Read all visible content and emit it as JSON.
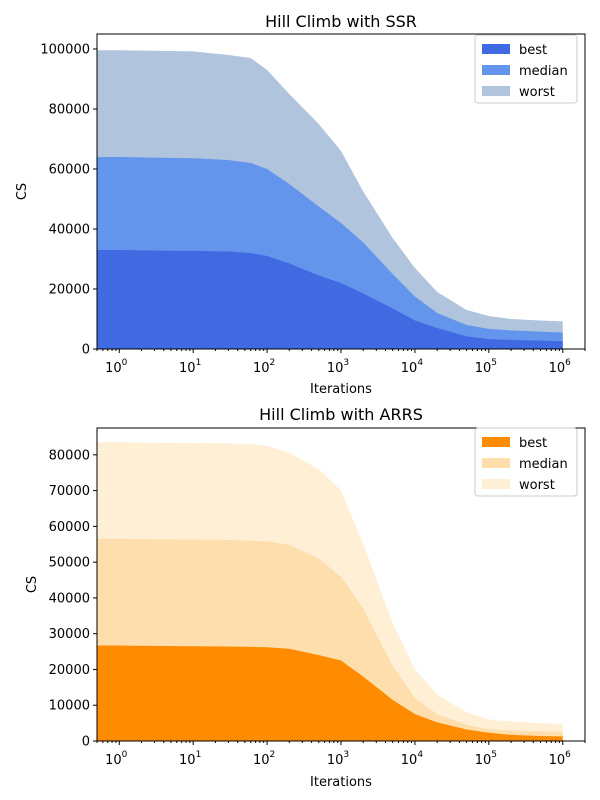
{
  "chart_data": [
    {
      "type": "area",
      "title": "Hill Climb with SSR",
      "xlabel": "Iterations",
      "ylabel": "CS",
      "xscale": "log",
      "xlim": [
        0.5,
        2000000
      ],
      "ylim": [
        0,
        105000
      ],
      "x_ticks": [
        1,
        10,
        100,
        1000,
        10000,
        100000,
        1000000
      ],
      "x_tick_labels": [
        [
          "10",
          "0"
        ],
        [
          "10",
          "1"
        ],
        [
          "10",
          "2"
        ],
        [
          "10",
          "3"
        ],
        [
          "10",
          "4"
        ],
        [
          "10",
          "5"
        ],
        [
          "10",
          "6"
        ]
      ],
      "y_ticks": [
        0,
        20000,
        40000,
        60000,
        80000,
        100000
      ],
      "y_tick_labels": [
        "0",
        "20000",
        "40000",
        "60000",
        "80000",
        "100000"
      ],
      "legend_position": "top-right",
      "x": [
        0.5,
        1,
        3,
        10,
        30,
        60,
        100,
        200,
        500,
        1000,
        2000,
        5000,
        10000,
        20000,
        50000,
        100000,
        200000,
        500000,
        1000000
      ],
      "series": [
        {
          "name": "best",
          "color": "#4169e1",
          "values": [
            33000,
            33000,
            32800,
            32700,
            32500,
            32000,
            31000,
            28500,
            24500,
            22000,
            18500,
            13500,
            9500,
            7000,
            4200,
            3300,
            3000,
            2800,
            2600
          ]
        },
        {
          "name": "median",
          "color": "#6495ed",
          "values": [
            64000,
            64000,
            63800,
            63600,
            63000,
            62000,
            60000,
            55000,
            47500,
            42000,
            35500,
            25000,
            17500,
            12000,
            8000,
            6700,
            6200,
            5800,
            5500
          ]
        },
        {
          "name": "worst",
          "color": "#b0c4de",
          "values": [
            99600,
            99600,
            99400,
            99200,
            98000,
            97000,
            93000,
            85000,
            75000,
            66000,
            52500,
            37000,
            27000,
            19000,
            13000,
            11000,
            10000,
            9500,
            9200
          ]
        }
      ]
    },
    {
      "type": "area",
      "title": "Hill Climb with ARRS",
      "xlabel": "Iterations",
      "ylabel": "CS",
      "xscale": "log",
      "xlim": [
        0.5,
        2000000
      ],
      "ylim": [
        0,
        87500
      ],
      "x_ticks": [
        1,
        10,
        100,
        1000,
        10000,
        100000,
        1000000
      ],
      "x_tick_labels": [
        [
          "10",
          "0"
        ],
        [
          "10",
          "1"
        ],
        [
          "10",
          "2"
        ],
        [
          "10",
          "3"
        ],
        [
          "10",
          "4"
        ],
        [
          "10",
          "5"
        ],
        [
          "10",
          "6"
        ]
      ],
      "y_ticks": [
        0,
        10000,
        20000,
        30000,
        40000,
        50000,
        60000,
        70000,
        80000
      ],
      "y_tick_labels": [
        "0",
        "10000",
        "20000",
        "30000",
        "40000",
        "50000",
        "60000",
        "70000",
        "80000"
      ],
      "legend_position": "top-right",
      "x": [
        0.5,
        1,
        3,
        10,
        30,
        60,
        100,
        200,
        500,
        1000,
        2000,
        5000,
        10000,
        20000,
        50000,
        100000,
        200000,
        500000,
        1000000
      ],
      "series": [
        {
          "name": "best",
          "color": "#ff8c00",
          "values": [
            26700,
            26700,
            26600,
            26500,
            26400,
            26300,
            26200,
            25800,
            24000,
            22500,
            18000,
            11500,
            7500,
            5200,
            3200,
            2300,
            1700,
            1400,
            1300
          ]
        },
        {
          "name": "median",
          "color": "#ffdead",
          "values": [
            56500,
            56500,
            56400,
            56300,
            56200,
            56000,
            55800,
            54800,
            51000,
            46000,
            37000,
            21000,
            12000,
            7500,
            4500,
            3300,
            2900,
            2700,
            2600
          ]
        },
        {
          "name": "worst",
          "color": "#ffefd5",
          "values": [
            83500,
            83500,
            83400,
            83300,
            83200,
            83000,
            82500,
            80500,
            76000,
            70000,
            55000,
            33000,
            20000,
            13000,
            8000,
            6000,
            5500,
            5000,
            4700
          ]
        }
      ]
    }
  ]
}
